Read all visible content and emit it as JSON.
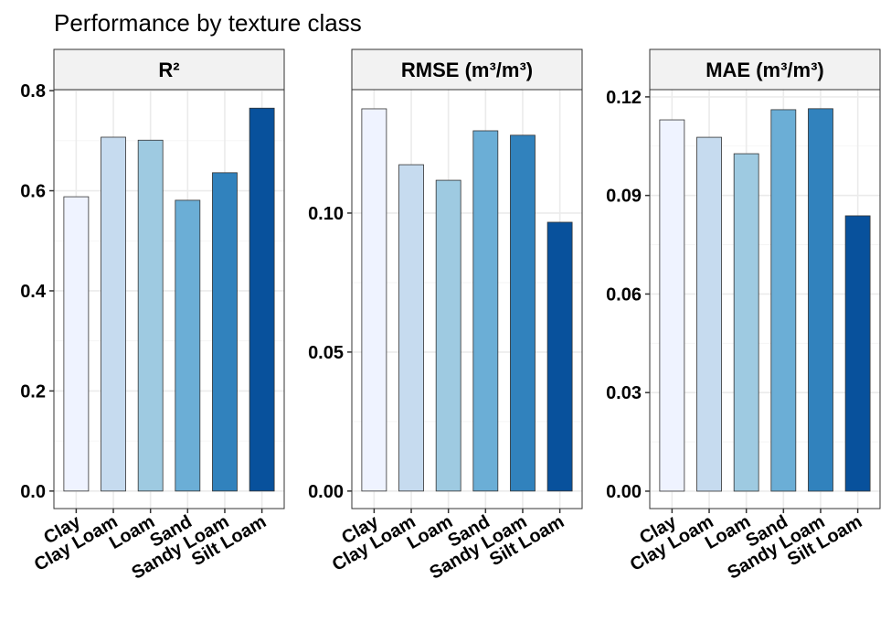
{
  "title": "Performance by texture class",
  "colors": [
    "#EFF3FF",
    "#C6DBEF",
    "#9ECAE1",
    "#6BAED6",
    "#3182BD",
    "#08519C"
  ],
  "chart_data": [
    {
      "type": "bar",
      "title": "R²",
      "categories": [
        "Clay",
        "Clay Loam",
        "Loam",
        "Sand",
        "Sandy Loam",
        "Silt Loam"
      ],
      "values": [
        0.588,
        0.707,
        0.701,
        0.581,
        0.636,
        0.765
      ],
      "ylim": [
        -0.035,
        0.802
      ],
      "ticks": [
        0,
        0.2,
        0.4,
        0.6,
        0.8
      ],
      "tick_labels": [
        "0.0",
        "0.2",
        "0.4",
        "0.6",
        "0.8"
      ],
      "grid": true
    },
    {
      "type": "bar",
      "title": "RMSE (m³/m³)",
      "categories": [
        "Clay",
        "Clay Loam",
        "Loam",
        "Sand",
        "Sandy Loam",
        "Silt Loam"
      ],
      "values": [
        0.1375,
        0.1174,
        0.1118,
        0.1296,
        0.128,
        0.0967
      ],
      "ylim": [
        -0.0063,
        0.1444
      ],
      "ticks": [
        0,
        0.05,
        0.1
      ],
      "tick_labels": [
        "0.00",
        "0.05",
        "0.10"
      ],
      "grid": true
    },
    {
      "type": "bar",
      "title": "MAE (m³/m³)",
      "categories": [
        "Clay",
        "Clay Loam",
        "Loam",
        "Sand",
        "Sandy Loam",
        "Silt Loam"
      ],
      "values": [
        0.113,
        0.1077,
        0.1027,
        0.1161,
        0.1164,
        0.0838
      ],
      "ylim": [
        -0.0053,
        0.1222
      ],
      "ticks": [
        0,
        0.03,
        0.06,
        0.09,
        0.12
      ],
      "tick_labels": [
        "0.00",
        "0.03",
        "0.06",
        "0.09",
        "0.12"
      ],
      "grid": true
    }
  ]
}
